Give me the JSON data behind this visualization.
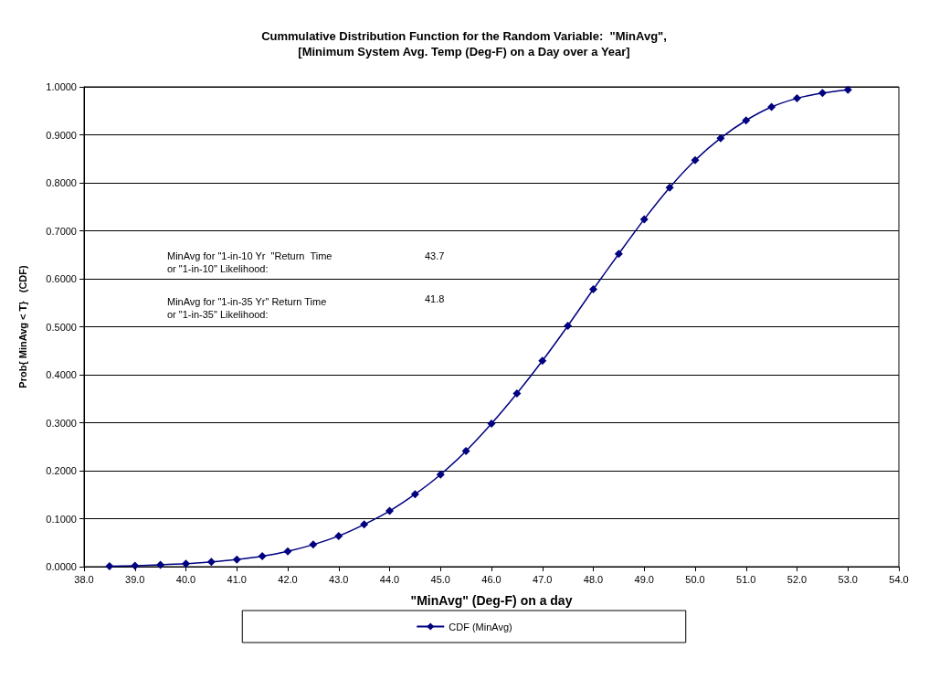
{
  "chart_data": {
    "type": "line",
    "title": "Cummulative Distribution Function for the Random Variable:  \"MinAvg\",\n[Minimum System Avg. Temp (Deg-F) on a Day over a Year]",
    "xlabel": "\"MinAvg\" (Deg-F) on a day",
    "ylabel": "Prob{ MinAvg < T}   (CDF)",
    "x": [
      38.5,
      39.0,
      39.5,
      40.0,
      40.5,
      41.0,
      41.5,
      42.0,
      42.5,
      43.0,
      43.5,
      44.0,
      44.5,
      45.0,
      45.5,
      46.0,
      46.5,
      47.0,
      47.5,
      48.0,
      48.5,
      49.0,
      49.5,
      50.0,
      50.5,
      51.0,
      51.5,
      52.0,
      52.5,
      53.0
    ],
    "series": [
      {
        "name": "CDF (MinAvg)",
        "color": "#000080",
        "values": [
          0.001,
          0.002,
          0.004,
          0.006,
          0.01,
          0.015,
          0.022,
          0.032,
          0.046,
          0.064,
          0.088,
          0.116,
          0.151,
          0.192,
          0.241,
          0.298,
          0.361,
          0.429,
          0.502,
          0.578,
          0.652,
          0.724,
          0.79,
          0.847,
          0.893,
          0.93,
          0.958,
          0.976,
          0.987,
          0.994
        ]
      }
    ],
    "xlim": [
      38,
      54
    ],
    "xticks": [
      {
        "value": 38,
        "label": "38.0"
      },
      {
        "value": 39,
        "label": "39.0"
      },
      {
        "value": 40,
        "label": "40.0"
      },
      {
        "value": 41,
        "label": "41.0"
      },
      {
        "value": 42,
        "label": "42.0"
      },
      {
        "value": 43,
        "label": "43.0"
      },
      {
        "value": 44,
        "label": "44.0"
      },
      {
        "value": 45,
        "label": "45.0"
      },
      {
        "value": 46,
        "label": "46.0"
      },
      {
        "value": 47,
        "label": "47.0"
      },
      {
        "value": 48,
        "label": "48.0"
      },
      {
        "value": 49,
        "label": "49.0"
      },
      {
        "value": 50,
        "label": "50.0"
      },
      {
        "value": 51,
        "label": "51.0"
      },
      {
        "value": 52,
        "label": "52.0"
      },
      {
        "value": 53,
        "label": "53.0"
      },
      {
        "value": 54,
        "label": "54.0"
      }
    ],
    "ylim": [
      0,
      1
    ],
    "yticks": [
      {
        "value": 0,
        "label": "0.0000"
      },
      {
        "value": 0.1,
        "label": "0.1000"
      },
      {
        "value": 0.2,
        "label": "0.2000"
      },
      {
        "value": 0.3,
        "label": "0.3000"
      },
      {
        "value": 0.4,
        "label": "0.4000"
      },
      {
        "value": 0.5,
        "label": "0.5000"
      },
      {
        "value": 0.6,
        "label": "0.6000"
      },
      {
        "value": 0.7,
        "label": "0.7000"
      },
      {
        "value": 0.8,
        "label": "0.8000"
      },
      {
        "value": 0.9,
        "label": "0.9000"
      },
      {
        "value": 1,
        "label": "1.0000"
      }
    ],
    "annotations": [
      "MinAvg for \"1-in-10 Yr  \"Return  Time\nor \"1-in-10\" Likelihood:",
      "43.7",
      "MinAvg for \"1-in-35 Yr\" Return Time\nor \"1-in-35\" Likelihood:",
      "41.8"
    ],
    "grid": "y",
    "legend": "bottom",
    "marker": "diamond",
    "line_style": "solid"
  }
}
